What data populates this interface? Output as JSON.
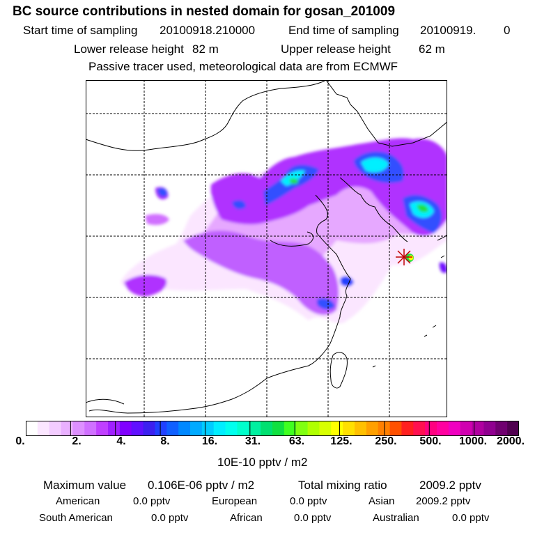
{
  "title": "BC  source contributions in nested domain for gosan_201009",
  "header": {
    "start_label": "Start time of sampling",
    "start_value": "20100918.210000",
    "end_label": "End time of sampling",
    "end_value": "20100919.",
    "end_suffix": "0",
    "lower_label": "Lower release height",
    "lower_value": "82 m",
    "upper_label": "Upper release height",
    "upper_value": "62 m",
    "note": "Passive tracer used, meteorological data are from ECMWF"
  },
  "legend": {
    "unit": "10E-10 pptv / m2",
    "tick_labels": [
      "0.",
      "2.",
      "4.",
      "8.",
      "16.",
      "31.",
      "63.",
      "125.",
      "250.",
      "500.",
      "1000.",
      "2000."
    ],
    "colors": [
      "#ffffff",
      "#fbe6ff",
      "#f3ccff",
      "#e9b0ff",
      "#de90ff",
      "#d070ff",
      "#c040ff",
      "#a020ff",
      "#8000ff",
      "#6010ff",
      "#3c20f0",
      "#2040ff",
      "#1060ff",
      "#0088ff",
      "#00aaff",
      "#00ccff",
      "#00eeff",
      "#00ffee",
      "#00ffcc",
      "#00f0a0",
      "#00e070",
      "#10e040",
      "#40ff20",
      "#80ff10",
      "#b0ff00",
      "#d8ff00",
      "#ffff00",
      "#ffe000",
      "#ffc000",
      "#ffa000",
      "#ff8000",
      "#ff5000",
      "#ff2020",
      "#ff1050",
      "#ff0080",
      "#ff00a0",
      "#f000c0",
      "#d000b0",
      "#b000a0",
      "#900090",
      "#700070",
      "#500050"
    ]
  },
  "stats": {
    "max_label": "Maximum value",
    "max_value": "0.106E-06 pptv / m2",
    "total_label": "Total mixing ratio",
    "total_value": "2009.2 pptv",
    "regions": [
      {
        "name": "American",
        "value": "0.0 pptv"
      },
      {
        "name": "European",
        "value": "0.0 pptv"
      },
      {
        "name": "Asian",
        "value": "2009.2 pptv"
      },
      {
        "name": "South American",
        "value": "0.0 pptv"
      },
      {
        "name": "African",
        "value": "0.0 pptv"
      },
      {
        "name": "Australian",
        "value": "0.0 pptv"
      }
    ]
  },
  "map": {
    "receptor": "gosan",
    "colors": {
      "light": "#fbe6ff",
      "pink": "#e6a8ff",
      "purple": "#b030ff",
      "violet": "#9010ff",
      "blue": "#3050ff",
      "cyan": "#00f0ff",
      "green": "#20e040",
      "yellow": "#ffff00",
      "red": "#ff2020",
      "star": "#c00000"
    }
  }
}
